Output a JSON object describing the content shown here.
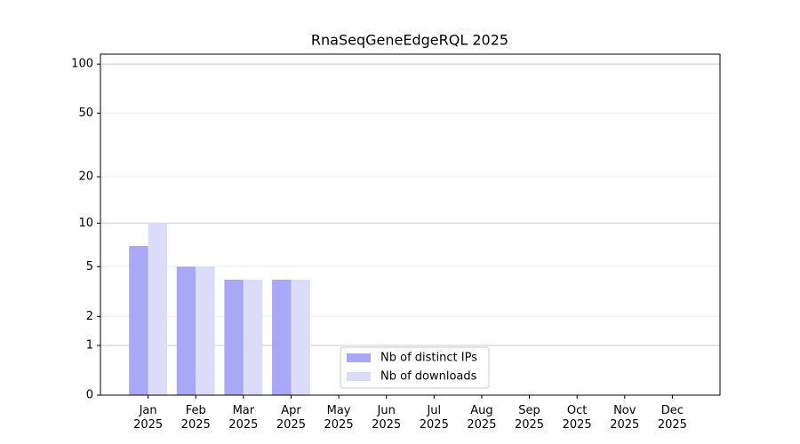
{
  "chart_data": {
    "type": "bar",
    "title": "RnaSeqGeneEdgeRQL 2025",
    "categories": [
      "Jan 2025",
      "Feb 2025",
      "Mar 2025",
      "Apr 2025",
      "May 2025",
      "Jun 2025",
      "Jul 2025",
      "Aug 2025",
      "Sep 2025",
      "Oct 2025",
      "Nov 2025",
      "Dec 2025"
    ],
    "series": [
      {
        "name": "Nb of distinct IPs",
        "color": "#a8a8f7",
        "values": [
          7,
          5,
          4,
          4,
          null,
          null,
          null,
          null,
          null,
          null,
          null,
          null
        ]
      },
      {
        "name": "Nb of downloads",
        "color": "#dcdcfa",
        "values": [
          10,
          5,
          4,
          4,
          null,
          null,
          null,
          null,
          null,
          null,
          null,
          null
        ]
      }
    ],
    "yscale": "log1p",
    "ylim": [
      0,
      115
    ],
    "yticks": [
      0,
      1,
      2,
      5,
      10,
      20,
      50,
      100
    ],
    "grid": true,
    "legend": "lower center"
  }
}
